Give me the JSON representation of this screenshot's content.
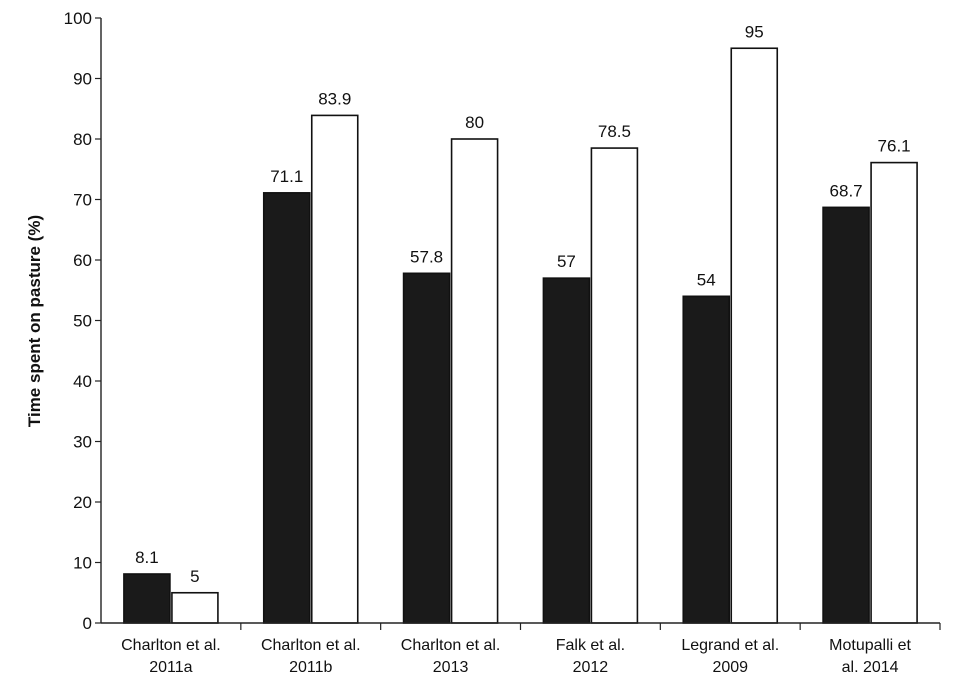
{
  "chart_data": {
    "type": "bar",
    "title": "",
    "xlabel": "",
    "ylabel": "Time spent on pasture (%)",
    "ylim": [
      0,
      100
    ],
    "yticks": [
      0,
      10,
      20,
      30,
      40,
      50,
      60,
      70,
      80,
      90,
      100
    ],
    "grid": false,
    "legend": "none",
    "categories": [
      [
        "Charlton et al.",
        "2011a"
      ],
      [
        "Charlton et al.",
        "2011b"
      ],
      [
        "Charlton et al.",
        "2013"
      ],
      [
        "Falk et al.",
        "2012"
      ],
      [
        "Legrand et al.",
        "2009"
      ],
      [
        "Motupalli et",
        "al. 2014"
      ]
    ],
    "series": [
      {
        "values": [
          8.1,
          71.1,
          57.8,
          57,
          54,
          68.7
        ],
        "color": "#1a1a1a",
        "labels": [
          "8.1",
          "71.1",
          "57.8",
          "57",
          "54",
          "68.7"
        ]
      },
      {
        "values": [
          5,
          83.9,
          80,
          78.5,
          95,
          76.1
        ],
        "color": "#ffffff",
        "labels": [
          "5",
          "83.9",
          "80",
          "78.5",
          "95",
          "76.1"
        ]
      }
    ]
  }
}
